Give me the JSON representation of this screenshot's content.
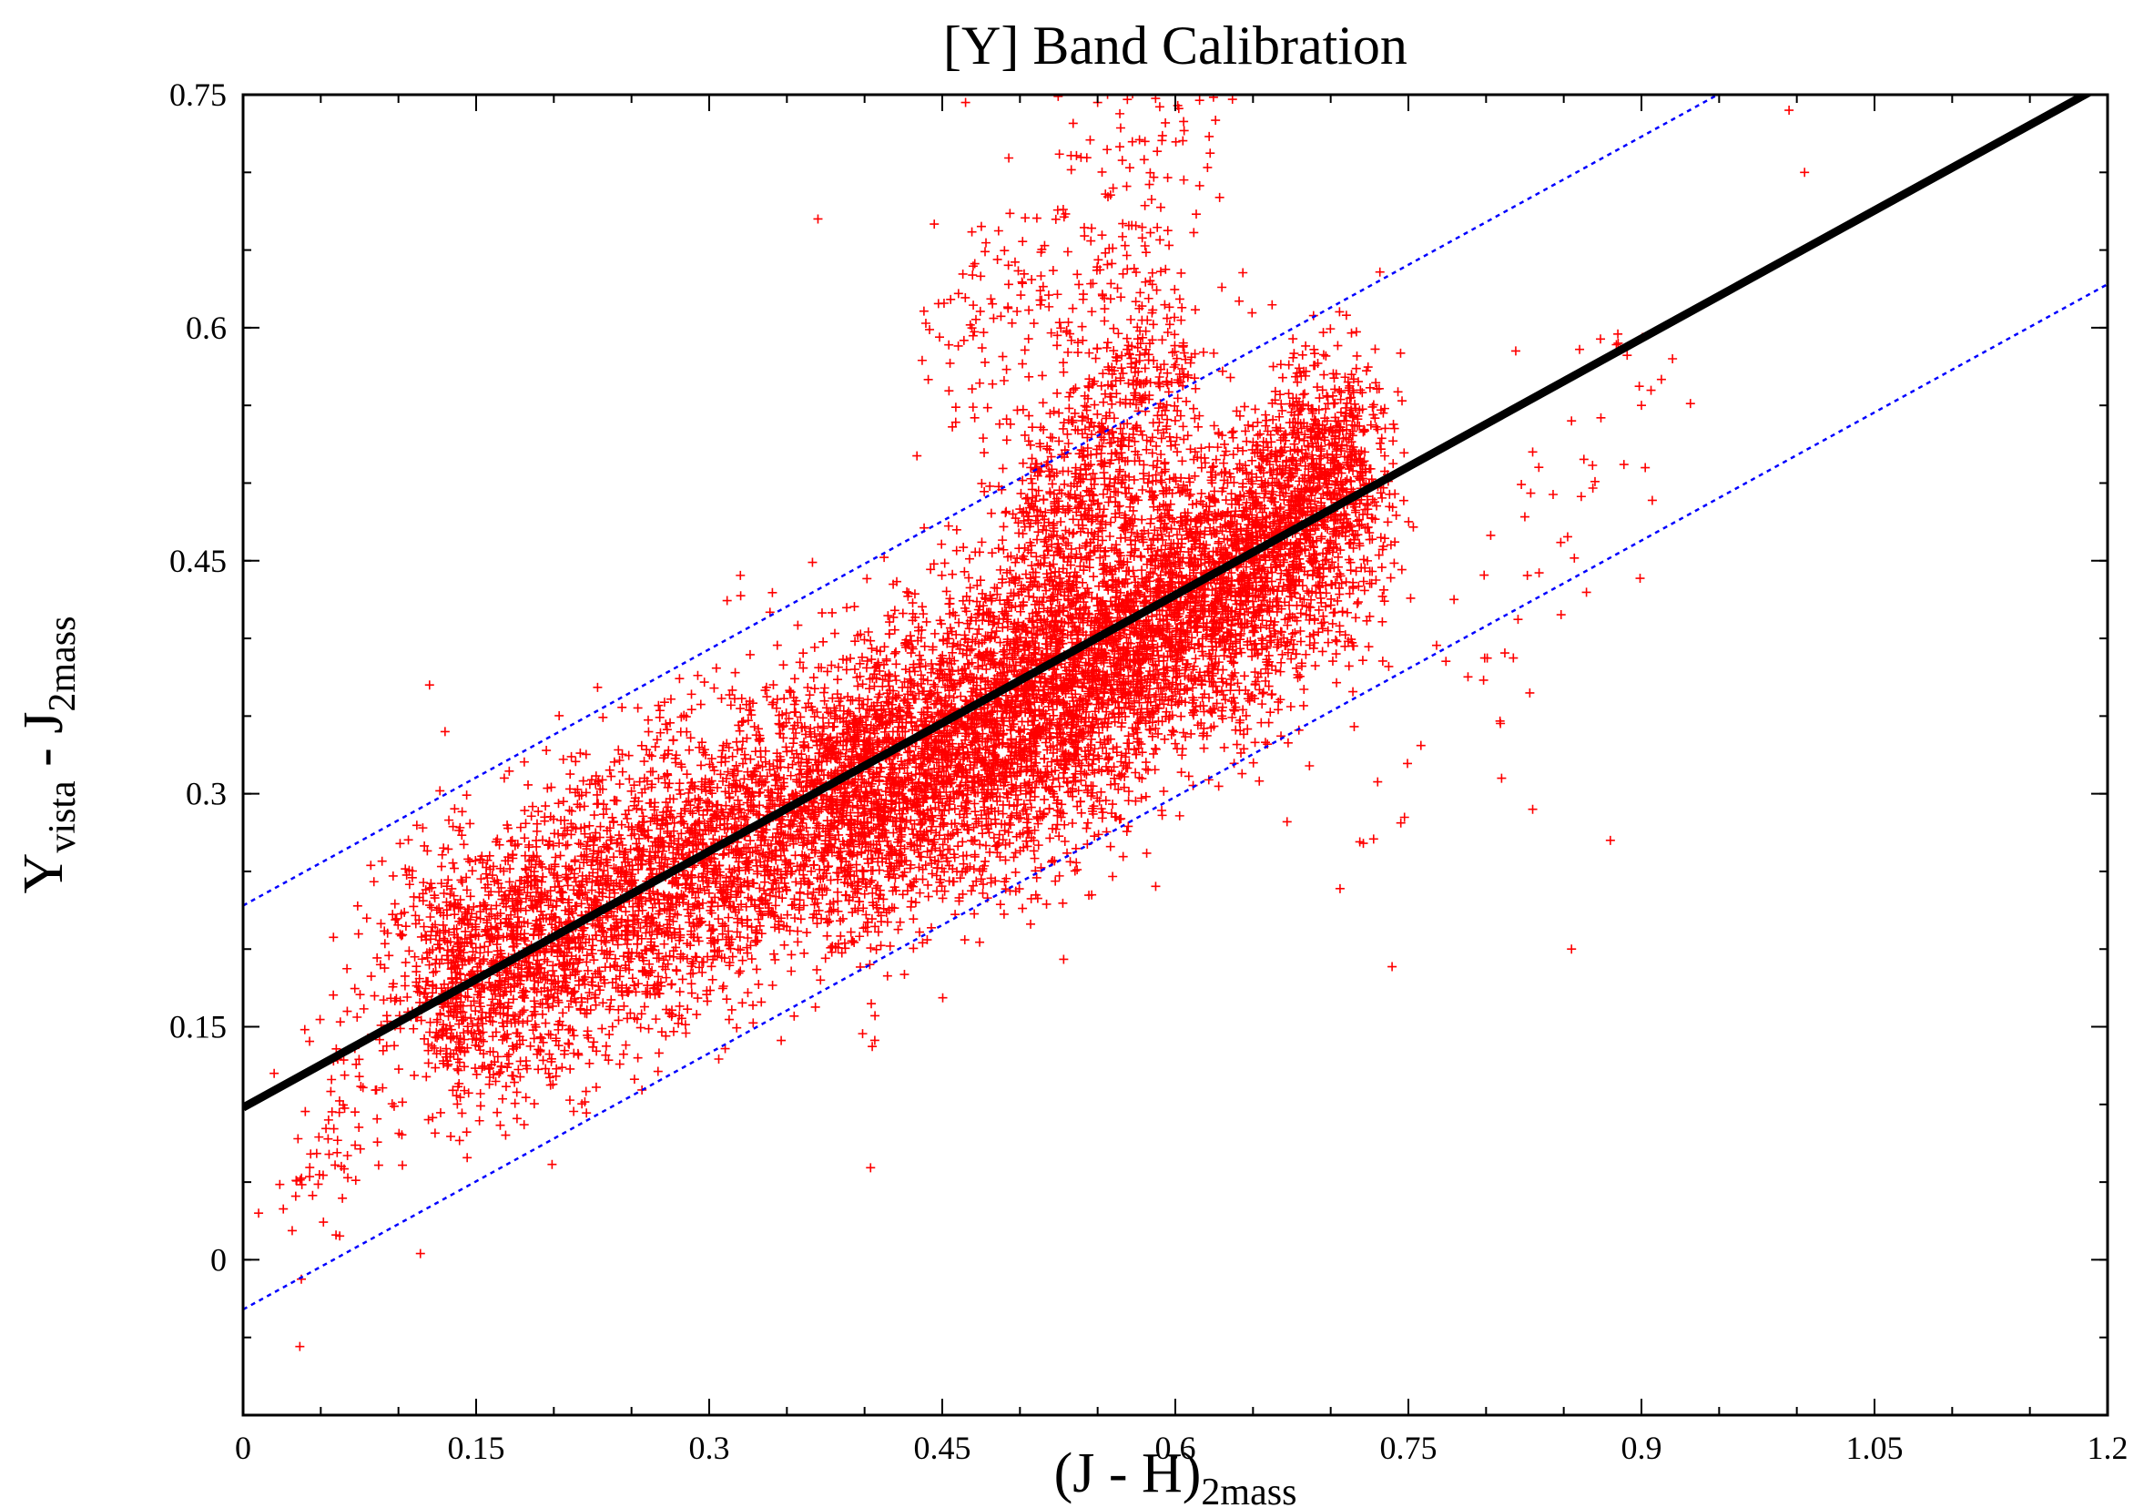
{
  "chart_data": {
    "type": "scatter",
    "title": "[Y] Band Calibration",
    "xlabel": {
      "main": "(J - H)",
      "subscript": "2mass"
    },
    "ylabel": {
      "main_1": "Y",
      "sub_1": "vista",
      "main_2": " - J",
      "sub_2": "2mass"
    },
    "xlim": [
      0,
      1.2
    ],
    "ylim": [
      -0.1,
      0.75
    ],
    "x_ticks": [
      {
        "value": 0,
        "label": "0"
      },
      {
        "value": 0.15,
        "label": "0.15"
      },
      {
        "value": 0.3,
        "label": "0.3"
      },
      {
        "value": 0.45,
        "label": "0.45"
      },
      {
        "value": 0.6,
        "label": "0.6"
      },
      {
        "value": 0.75,
        "label": "0.75"
      },
      {
        "value": 0.9,
        "label": "0.9"
      },
      {
        "value": 1.05,
        "label": "1.05"
      },
      {
        "value": 1.2,
        "label": "1.2"
      }
    ],
    "y_ticks": [
      {
        "value": 0,
        "label": "0"
      },
      {
        "value": 0.15,
        "label": "0.15"
      },
      {
        "value": 0.3,
        "label": "0.3"
      },
      {
        "value": 0.45,
        "label": "0.45"
      },
      {
        "value": 0.6,
        "label": "0.6"
      },
      {
        "value": 0.75,
        "label": "0.75"
      }
    ],
    "grid": false,
    "marker": "+",
    "colors": {
      "points": "#ff0000",
      "fit": "#000000",
      "bounds": "#0000ff"
    },
    "fit_line": {
      "intercept": 0.098,
      "slope": 0.55
    },
    "bound_lines": [
      {
        "intercept": 0.228,
        "slope": 0.55
      },
      {
        "intercept": -0.032,
        "slope": 0.55
      }
    ],
    "clusters": [
      {
        "x": [
          0.03,
          0.12
        ],
        "y": [
          0.04,
          0.22
        ],
        "n": 140,
        "spread": 0.045
      },
      {
        "x": [
          0.12,
          0.55
        ],
        "y": [
          0.17,
          0.38
        ],
        "n": 5200,
        "spread": 0.045
      },
      {
        "x": [
          0.38,
          0.72
        ],
        "y": [
          0.28,
          0.48
        ],
        "n": 2600,
        "spread": 0.05
      },
      {
        "x": [
          0.55,
          0.72
        ],
        "y": [
          0.38,
          0.52
        ],
        "n": 2000,
        "spread": 0.04
      },
      {
        "x": [
          0.5,
          0.6
        ],
        "y": [
          0.45,
          0.58
        ],
        "n": 700,
        "spread": 0.035
      },
      {
        "x": [
          0.45,
          0.62
        ],
        "y": [
          0.55,
          0.74
        ],
        "n": 260,
        "spread": 0.05
      },
      {
        "x": [
          0.72,
          0.92
        ],
        "y": [
          0.27,
          0.6
        ],
        "n": 60,
        "spread": 0.04
      }
    ],
    "outliers": [
      [
        0.995,
        0.74
      ],
      [
        1.005,
        0.7
      ],
      [
        0.855,
        0.2
      ],
      [
        0.88,
        0.27
      ],
      [
        0.37,
        0.67
      ],
      [
        0.12,
        0.37
      ],
      [
        0.13,
        0.34
      ],
      [
        0.02,
        0.12
      ],
      [
        0.055,
        0.09
      ],
      [
        0.01,
        0.03
      ],
      [
        0.81,
        0.31
      ],
      [
        0.83,
        0.29
      ],
      [
        0.83,
        0.52
      ],
      [
        0.855,
        0.54
      ],
      [
        0.9,
        0.55
      ],
      [
        0.92,
        0.58
      ],
      [
        0.885,
        0.59
      ],
      [
        0.465,
        0.745
      ],
      [
        0.55,
        0.745
      ],
      [
        0.585,
        0.76
      ]
    ]
  }
}
